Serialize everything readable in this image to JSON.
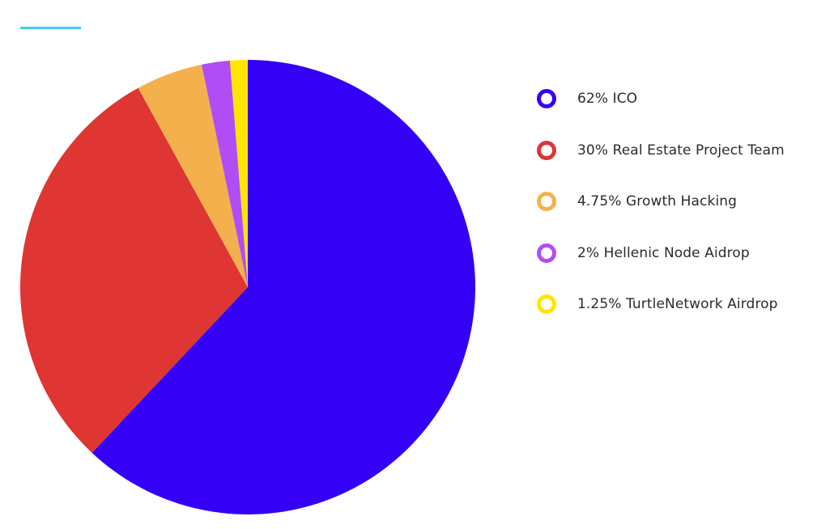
{
  "header": {
    "accent_color": "#3ed0e8"
  },
  "chart_data": {
    "type": "pie",
    "start": "top",
    "direction": "clockwise",
    "categories": [
      "ICO",
      "Real Estate Project Team",
      "Growth Hacking",
      "Hellenic Node Aidrop",
      "TurtleNetwork Airdrop"
    ],
    "values": [
      62,
      30,
      4.75,
      2,
      1.25
    ],
    "colors": [
      "#3500f6",
      "#df3533",
      "#f5b04e",
      "#b04df5",
      "#ffe500"
    ],
    "legend_position": "right",
    "legend": [
      {
        "label": "62% ICO",
        "color": "#3500f6"
      },
      {
        "label": "30% Real Estate Project Team",
        "color": "#df3533"
      },
      {
        "label": "4.75% Growth Hacking",
        "color": "#f5b04e"
      },
      {
        "label": "2% Hellenic Node Aidrop",
        "color": "#b04df5"
      },
      {
        "label": "1.25% TurtleNetwork Airdrop",
        "color": "#ffe500"
      }
    ]
  }
}
